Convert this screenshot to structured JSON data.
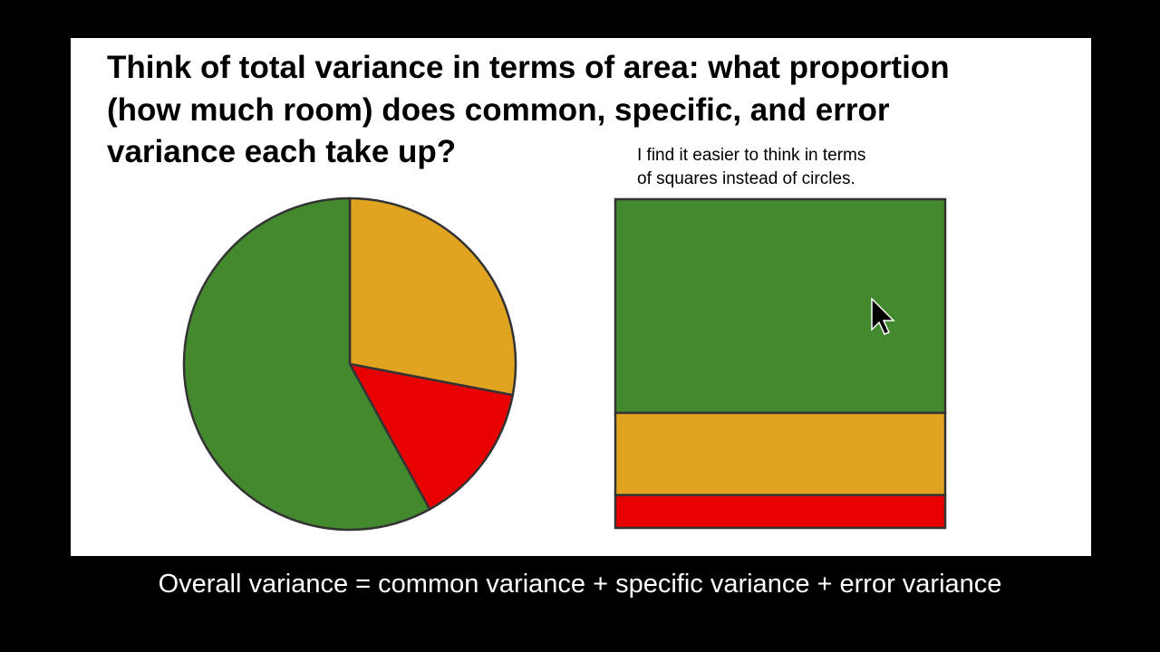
{
  "slide": {
    "title_lines": [
      "Think of total variance in terms of area: what proportion",
      "(how much room) does common, specific, and error",
      "variance each take up?"
    ],
    "note_lines": [
      "I find it easier to think in terms",
      "of squares instead of circles."
    ],
    "pie": {
      "type": "pie",
      "values": [
        28,
        14,
        58
      ],
      "colors": [
        "#e0a420",
        "#e80000",
        "#438a2e"
      ]
    },
    "square": {
      "type": "stacked-area",
      "values": [
        65,
        25,
        10
      ],
      "colors": [
        "#438a2e",
        "#e0a420",
        "#e80000"
      ]
    },
    "caption": "Overall variance = common variance + specific variance + error variance"
  }
}
